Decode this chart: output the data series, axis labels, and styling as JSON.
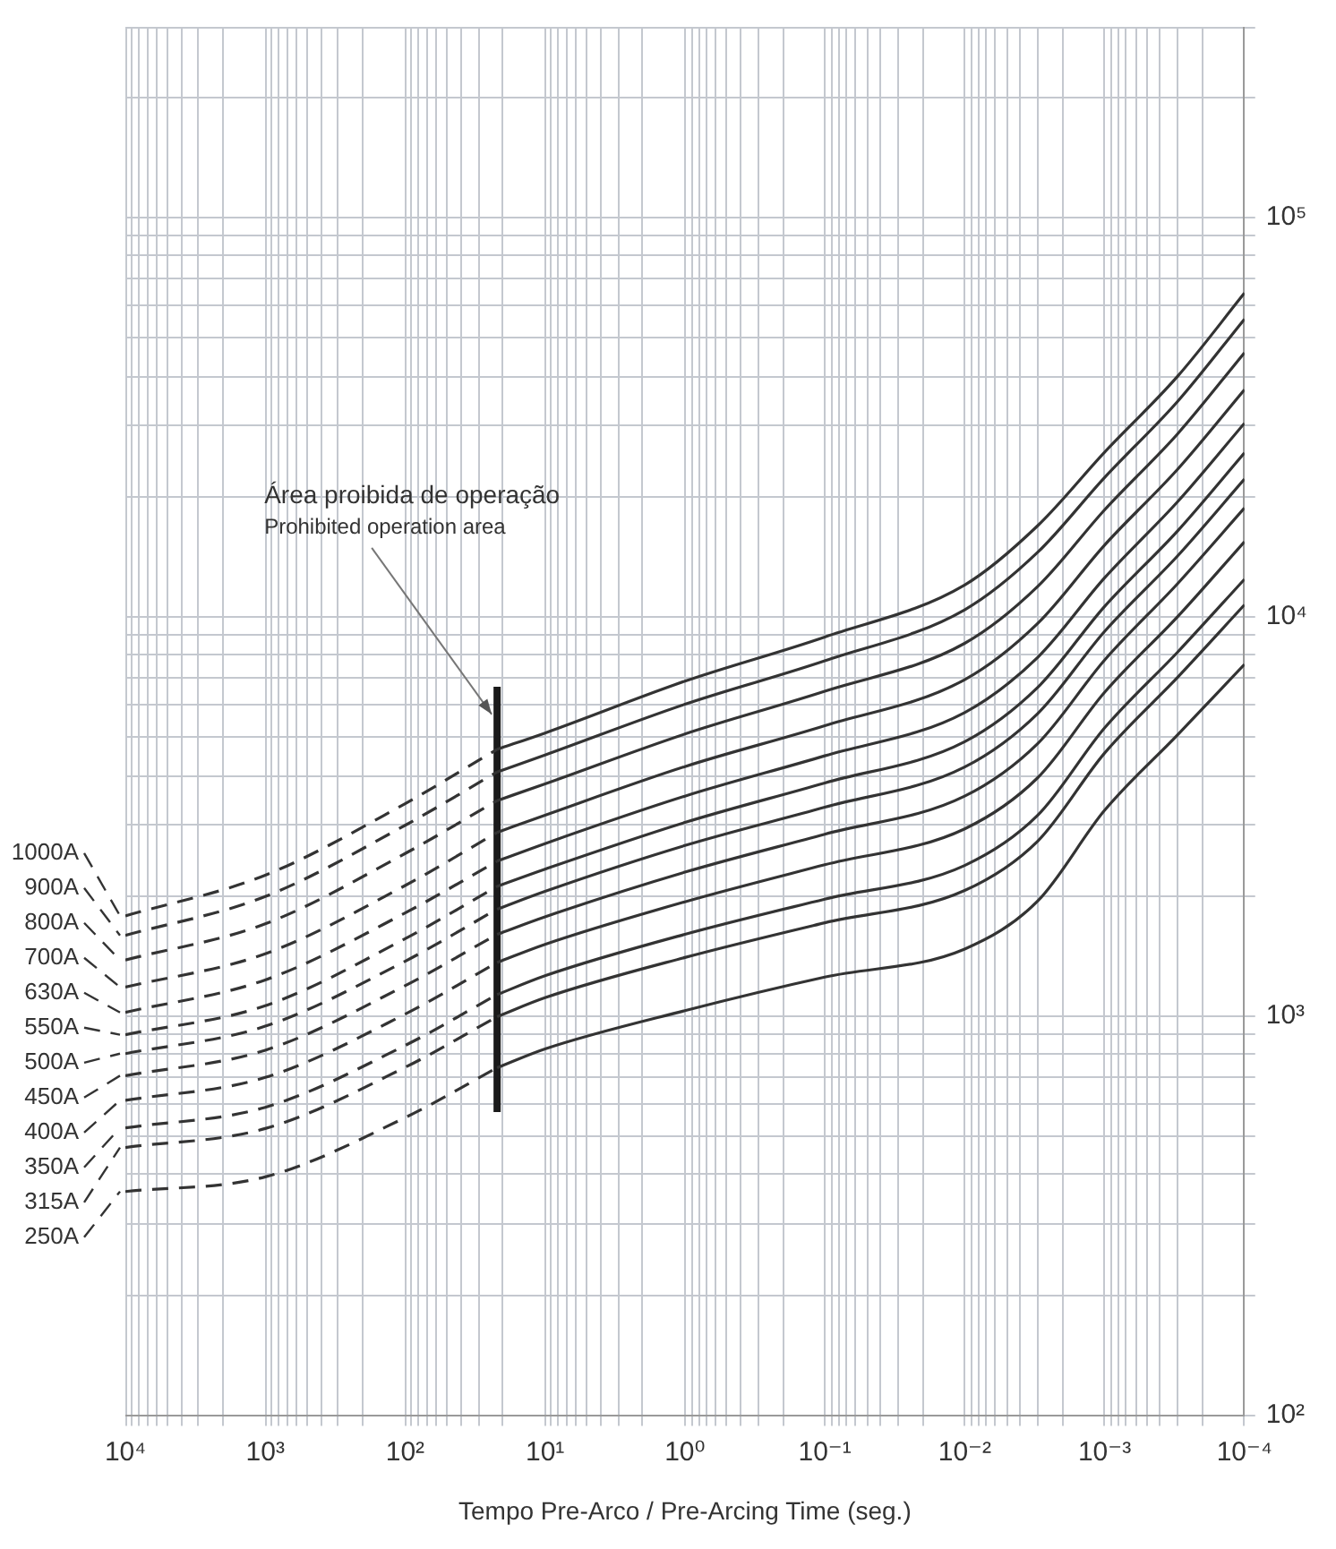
{
  "chart_data": {
    "type": "line",
    "log": "xy",
    "grid": true,
    "legend": "left",
    "marker": "none",
    "xlabel": "Tempo Pre-Arco / Pre-Arcing Time (seg.)",
    "xlim": [
      10000,
      0.0001
    ],
    "xticks": [
      {
        "value": 0.0001,
        "label": "10⁻⁴"
      },
      {
        "value": 0.0002,
        "label": null
      },
      {
        "value": 0.0003,
        "label": null
      },
      {
        "value": 0.0004,
        "label": null
      },
      {
        "value": 0.0005,
        "label": null
      },
      {
        "value": 0.0006,
        "label": null
      },
      {
        "value": 0.0007,
        "label": null
      },
      {
        "value": 0.0008,
        "label": null
      },
      {
        "value": 0.0009,
        "label": null
      },
      {
        "value": 0.001,
        "label": "10⁻³"
      },
      {
        "value": 0.002,
        "label": null
      },
      {
        "value": 0.003,
        "label": null
      },
      {
        "value": 0.004,
        "label": null
      },
      {
        "value": 0.005,
        "label": null
      },
      {
        "value": 0.006,
        "label": null
      },
      {
        "value": 0.007,
        "label": null
      },
      {
        "value": 0.008,
        "label": null
      },
      {
        "value": 0.009,
        "label": null
      },
      {
        "value": 0.01,
        "label": "10⁻²"
      },
      {
        "value": 0.02,
        "label": null
      },
      {
        "value": 0.03,
        "label": null
      },
      {
        "value": 0.04,
        "label": null
      },
      {
        "value": 0.05,
        "label": null
      },
      {
        "value": 0.06,
        "label": null
      },
      {
        "value": 0.07,
        "label": null
      },
      {
        "value": 0.08,
        "label": null
      },
      {
        "value": 0.09,
        "label": null
      },
      {
        "value": 0.1,
        "label": "10⁻¹"
      },
      {
        "value": 0.2,
        "label": null
      },
      {
        "value": 0.3,
        "label": null
      },
      {
        "value": 0.4,
        "label": null
      },
      {
        "value": 0.5,
        "label": null
      },
      {
        "value": 0.6,
        "label": null
      },
      {
        "value": 0.7,
        "label": null
      },
      {
        "value": 0.8,
        "label": null
      },
      {
        "value": 0.9,
        "label": null
      },
      {
        "value": 1,
        "label": "10⁰"
      },
      {
        "value": 2,
        "label": null
      },
      {
        "value": 3,
        "label": null
      },
      {
        "value": 4,
        "label": null
      },
      {
        "value": 5,
        "label": null
      },
      {
        "value": 6,
        "label": null
      },
      {
        "value": 7,
        "label": null
      },
      {
        "value": 8,
        "label": null
      },
      {
        "value": 9,
        "label": null
      },
      {
        "value": 10,
        "label": "10¹"
      },
      {
        "value": 20,
        "label": null
      },
      {
        "value": 30,
        "label": null
      },
      {
        "value": 40,
        "label": null
      },
      {
        "value": 50,
        "label": null
      },
      {
        "value": 60,
        "label": null
      },
      {
        "value": 70,
        "label": null
      },
      {
        "value": 80,
        "label": null
      },
      {
        "value": 90,
        "label": null
      },
      {
        "value": 100,
        "label": "10²"
      },
      {
        "value": 200,
        "label": null
      },
      {
        "value": 300,
        "label": null
      },
      {
        "value": 400,
        "label": null
      },
      {
        "value": 500,
        "label": null
      },
      {
        "value": 600,
        "label": null
      },
      {
        "value": 700,
        "label": null
      },
      {
        "value": 800,
        "label": null
      },
      {
        "value": 900,
        "label": null
      },
      {
        "value": 1000,
        "label": "10³"
      },
      {
        "value": 2000,
        "label": null
      },
      {
        "value": 3000,
        "label": null
      },
      {
        "value": 4000,
        "label": null
      },
      {
        "value": 5000,
        "label": null
      },
      {
        "value": 6000,
        "label": null
      },
      {
        "value": 7000,
        "label": null
      },
      {
        "value": 8000,
        "label": null
      },
      {
        "value": 9000,
        "label": null
      },
      {
        "value": 10000,
        "label": "10⁴"
      }
    ],
    "ylim": [
      100,
      300000
    ],
    "yticks": [
      {
        "value": 100,
        "label": "10²"
      },
      {
        "value": 200,
        "label": null
      },
      {
        "value": 300,
        "label": null
      },
      {
        "value": 400,
        "label": null
      },
      {
        "value": 500,
        "label": null
      },
      {
        "value": 600,
        "label": null
      },
      {
        "value": 700,
        "label": null
      },
      {
        "value": 800,
        "label": null
      },
      {
        "value": 900,
        "label": null
      },
      {
        "value": 1000,
        "label": "10³"
      },
      {
        "value": 2000,
        "label": null
      },
      {
        "value": 3000,
        "label": null
      },
      {
        "value": 4000,
        "label": null
      },
      {
        "value": 5000,
        "label": null
      },
      {
        "value": 6000,
        "label": null
      },
      {
        "value": 7000,
        "label": null
      },
      {
        "value": 8000,
        "label": null
      },
      {
        "value": 9000,
        "label": null
      },
      {
        "value": 10000,
        "label": "10⁴"
      },
      {
        "value": 20000,
        "label": null
      },
      {
        "value": 30000,
        "label": null
      },
      {
        "value": 40000,
        "label": null
      },
      {
        "value": 50000,
        "label": null
      },
      {
        "value": 60000,
        "label": null
      },
      {
        "value": 70000,
        "label": null
      },
      {
        "value": 80000,
        "label": null
      },
      {
        "value": 90000,
        "label": null
      },
      {
        "value": 100000,
        "label": "10⁵"
      },
      {
        "value": 200000,
        "label": null
      },
      {
        "value": 300000,
        "label": null
      }
    ],
    "annotations": [
      {
        "text": "Área proibida de operação\nProhibited operation area",
        "x": 22,
        "y": 5690
      }
    ],
    "series": [
      {
        "name": "1000A",
        "color": "#333333",
        "line_style": "dashed",
        "x": [
          10000,
          1000,
          100,
          22
        ],
        "values": [
          1780,
          2250,
          3400,
          4650
        ]
      },
      {
        "name": "900A",
        "color": "#333333",
        "line_style": "dashed",
        "x": [
          10000,
          1000,
          100,
          22
        ],
        "values": [
          1590,
          1990,
          3000,
          4080
        ]
      },
      {
        "name": "800A",
        "color": "#333333",
        "line_style": "dashed",
        "x": [
          10000,
          1000,
          100,
          22
        ],
        "values": [
          1380,
          1700,
          2550,
          3460
        ]
      },
      {
        "name": "700A",
        "color": "#333333",
        "line_style": "dashed",
        "x": [
          10000,
          1000,
          100,
          22
        ],
        "values": [
          1180,
          1430,
          2120,
          2880
        ]
      },
      {
        "name": "630A",
        "color": "#333333",
        "line_style": "dashed",
        "x": [
          10000,
          1000,
          100,
          22
        ],
        "values": [
          1020,
          1230,
          1810,
          2440
        ]
      },
      {
        "name": "550A",
        "color": "#333333",
        "line_style": "dashed",
        "x": [
          10000,
          1000,
          100,
          22
        ],
        "values": [
          897,
          1060,
          1560,
          2110
        ]
      },
      {
        "name": "500A",
        "color": "#333333",
        "line_style": "dashed",
        "x": [
          10000,
          1000,
          100,
          22
        ],
        "values": [
          804,
          942,
          1370,
          1850
        ]
      },
      {
        "name": "450A",
        "color": "#333333",
        "line_style": "dashed",
        "x": [
          10000,
          1000,
          100,
          22
        ],
        "values": [
          708,
          820,
          1190,
          1600
        ]
      },
      {
        "name": "400A",
        "color": "#333333",
        "line_style": "dashed",
        "x": [
          10000,
          1000,
          100,
          22
        ],
        "values": [
          614,
          701,
          1010,
          1360
        ]
      },
      {
        "name": "350A",
        "color": "#333333",
        "line_style": "dashed",
        "x": [
          10000,
          1000,
          100,
          22
        ],
        "values": [
          524,
          590,
          843,
          1130
        ]
      },
      {
        "name": "315A",
        "color": "#333333",
        "line_style": "dashed",
        "x": [
          10000,
          1000,
          100,
          22
        ],
        "values": [
          468,
          522,
          743,
          995
        ]
      },
      {
        "name": "250A",
        "color": "#333333",
        "line_style": "dashed",
        "x": [
          10000,
          1000,
          100,
          22
        ],
        "values": [
          363,
          395,
          556,
          741
        ]
      },
      {
        "color": "#333333",
        "line_style": "solid",
        "x": [
          22,
          10,
          1,
          0.1,
          0.01,
          0.003,
          0.001,
          0.0003,
          0.0001
        ],
        "values": [
          4650,
          5110,
          6890,
          8890,
          12000,
          16900,
          25800,
          40000,
          64600
        ]
      },
      {
        "color": "#333333",
        "line_style": "solid",
        "x": [
          22,
          10,
          1,
          0.1,
          0.01,
          0.003,
          0.001,
          0.0003,
          0.0001
        ],
        "values": [
          4080,
          4500,
          6030,
          7750,
          10400,
          14500,
          22300,
          34600,
          55600
        ]
      },
      {
        "color": "#333333",
        "line_style": "solid",
        "x": [
          22,
          10,
          1,
          0.1,
          0.01,
          0.003,
          0.001,
          0.0003,
          0.0001
        ],
        "values": [
          3460,
          3810,
          5080,
          6500,
          8570,
          11900,
          18500,
          28700,
          45800
        ]
      },
      {
        "color": "#333333",
        "line_style": "solid",
        "x": [
          22,
          10,
          1,
          0.1,
          0.01,
          0.003,
          0.001,
          0.0003,
          0.0001
        ],
        "values": [
          2880,
          3180,
          4210,
          5330,
          6950,
          9620,
          15100,
          23400,
          37000
        ]
      },
      {
        "color": "#333333",
        "line_style": "solid",
        "x": [
          22,
          10,
          1,
          0.1,
          0.01,
          0.003,
          0.001,
          0.0003,
          0.0001
        ],
        "values": [
          2440,
          2700,
          3550,
          4480,
          5750,
          7910,
          12500,
          19400,
          30500
        ]
      },
      {
        "color": "#333333",
        "line_style": "solid",
        "x": [
          22,
          10,
          1,
          0.1,
          0.01,
          0.003,
          0.001,
          0.0003,
          0.0001
        ],
        "values": [
          2110,
          2330,
          3050,
          3830,
          4860,
          6650,
          10600,
          16400,
          25700
        ]
      },
      {
        "color": "#333333",
        "line_style": "solid",
        "x": [
          22,
          10,
          1,
          0.1,
          0.01,
          0.003,
          0.001,
          0.0003,
          0.0001
        ],
        "values": [
          1850,
          2050,
          2670,
          3330,
          4200,
          5720,
          9180,
          14200,
          22100
        ]
      },
      {
        "color": "#333333",
        "line_style": "solid",
        "x": [
          22,
          10,
          1,
          0.1,
          0.01,
          0.003,
          0.001,
          0.0003,
          0.0001
        ],
        "values": [
          1600,
          1770,
          2290,
          2850,
          3550,
          4810,
          7780,
          12100,
          18700
        ]
      },
      {
        "color": "#333333",
        "line_style": "solid",
        "x": [
          22,
          10,
          1,
          0.1,
          0.01,
          0.003,
          0.001,
          0.0003,
          0.0001
        ],
        "values": [
          1360,
          1510,
          1930,
          2390,
          2940,
          3950,
          6460,
          10000,
          15400
        ]
      },
      {
        "color": "#333333",
        "line_style": "solid",
        "x": [
          22,
          10,
          1,
          0.1,
          0.01,
          0.003,
          0.001,
          0.0003,
          0.0001
        ],
        "values": [
          1130,
          1260,
          1600,
          1960,
          2380,
          3180,
          5260,
          8150,
          12400
        ]
      },
      {
        "color": "#333333",
        "line_style": "solid",
        "x": [
          22,
          10,
          1,
          0.1,
          0.01,
          0.003,
          0.001,
          0.0003,
          0.0001
        ],
        "values": [
          995,
          1110,
          1400,
          1710,
          2060,
          2740,
          4550,
          7050,
          10700
        ]
      },
      {
        "color": "#333333",
        "line_style": "solid",
        "x": [
          22,
          10,
          1,
          0.1,
          0.01,
          0.003,
          0.001,
          0.0003,
          0.0001
        ],
        "values": [
          741,
          826,
          1030,
          1250,
          1470,
          1940,
          3270,
          5060,
          7590
        ]
      },
      {
        "color": "#1a1a1a",
        "line_style": "solid",
        "x": [
          22,
          22
        ],
        "values": [
          574,
          6670
        ]
      }
    ]
  }
}
